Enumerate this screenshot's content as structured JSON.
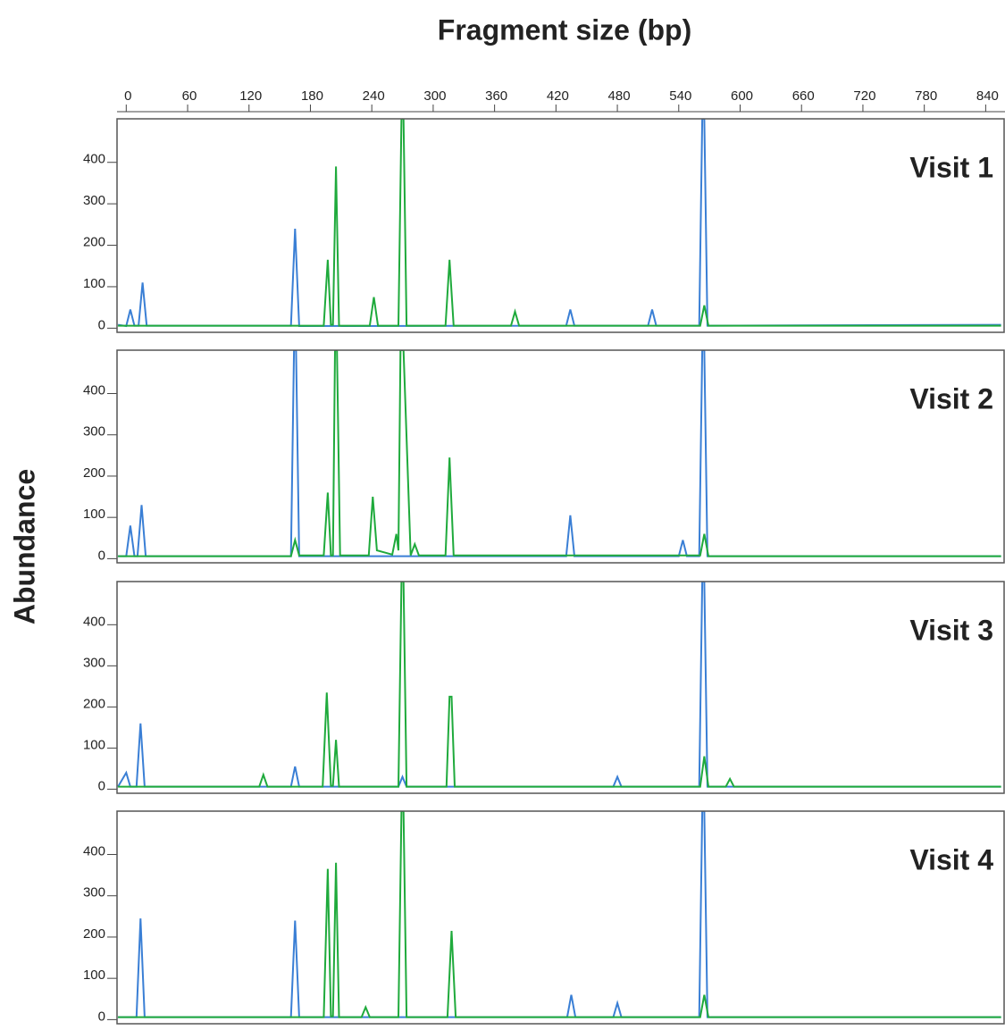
{
  "chart_data": [
    {
      "type": "line",
      "title": "Visit 1",
      "xlabel": "Fragment size (bp)",
      "ylabel": "Abundance",
      "xlim": [
        -9,
        858
      ],
      "xticks": [
        0,
        60,
        120,
        180,
        240,
        300,
        360,
        420,
        480,
        540,
        600,
        660,
        720,
        780,
        840
      ],
      "ylim": [
        -10,
        505
      ],
      "yticks": [
        0,
        100,
        200,
        300,
        400
      ],
      "series": [
        {
          "color": "#3a7fd5",
          "x": [
            -8,
            0,
            4,
            8,
            12,
            16,
            20,
            161,
            165,
            169,
            430,
            434,
            438,
            510,
            514,
            518,
            560,
            563,
            565,
            568,
            855
          ],
          "values": [
            8,
            5,
            45,
            6,
            6,
            110,
            6,
            6,
            240,
            5,
            6,
            45,
            6,
            6,
            45,
            6,
            6,
            505,
            505,
            6,
            8
          ]
        },
        {
          "color": "#1faa3c",
          "x": [
            -8,
            193,
            197,
            200,
            202,
            205,
            208,
            238,
            242,
            246,
            266,
            269,
            271,
            274,
            312,
            316,
            320,
            376,
            380,
            384,
            561,
            565,
            569,
            855
          ],
          "values": [
            6,
            6,
            165,
            8,
            8,
            390,
            6,
            6,
            75,
            6,
            6,
            505,
            505,
            6,
            6,
            165,
            6,
            6,
            40,
            6,
            6,
            55,
            6,
            6
          ]
        }
      ]
    },
    {
      "type": "line",
      "title": "Visit 2",
      "xlim": [
        -9,
        858
      ],
      "ylim": [
        -10,
        505
      ],
      "yticks": [
        0,
        100,
        200,
        300,
        400
      ],
      "series": [
        {
          "color": "#3a7fd5",
          "x": [
            -8,
            0,
            4,
            8,
            11,
            15,
            19,
            161,
            164,
            166,
            169,
            430,
            434,
            438,
            540,
            544,
            548,
            560,
            563,
            565,
            568,
            855
          ],
          "values": [
            6,
            6,
            80,
            6,
            6,
            130,
            6,
            6,
            505,
            505,
            6,
            6,
            105,
            6,
            6,
            45,
            6,
            6,
            505,
            505,
            6,
            6
          ]
        },
        {
          "color": "#1faa3c",
          "x": [
            -8,
            161,
            165,
            169,
            193,
            197,
            200,
            202,
            204,
            206,
            209,
            237,
            241,
            245,
            260,
            264,
            266,
            268,
            271,
            278,
            282,
            286,
            312,
            316,
            320,
            561,
            565,
            569,
            855
          ],
          "values": [
            6,
            6,
            45,
            8,
            8,
            160,
            8,
            8,
            505,
            505,
            8,
            8,
            150,
            20,
            10,
            60,
            20,
            505,
            505,
            8,
            35,
            8,
            8,
            245,
            8,
            8,
            60,
            6,
            6
          ]
        }
      ]
    },
    {
      "type": "line",
      "title": "Visit 3",
      "xlim": [
        -9,
        858
      ],
      "ylim": [
        -10,
        505
      ],
      "yticks": [
        0,
        100,
        200,
        300,
        400
      ],
      "series": [
        {
          "color": "#3a7fd5",
          "x": [
            -8,
            0,
            4,
            10,
            14,
            18,
            161,
            165,
            169,
            266,
            270,
            274,
            476,
            480,
            484,
            560,
            563,
            565,
            568,
            855
          ],
          "values": [
            6,
            40,
            6,
            6,
            160,
            6,
            6,
            55,
            6,
            6,
            30,
            6,
            6,
            30,
            6,
            6,
            505,
            505,
            6,
            6
          ]
        },
        {
          "color": "#1faa3c",
          "x": [
            -8,
            130,
            134,
            138,
            192,
            196,
            200,
            202,
            205,
            208,
            266,
            269,
            271,
            274,
            313,
            316,
            318,
            321,
            561,
            565,
            569,
            586,
            590,
            594,
            855
          ],
          "values": [
            6,
            6,
            35,
            6,
            6,
            235,
            8,
            8,
            120,
            6,
            6,
            505,
            505,
            6,
            6,
            225,
            225,
            6,
            6,
            80,
            6,
            6,
            25,
            6,
            6
          ]
        }
      ]
    },
    {
      "type": "line",
      "title": "Visit 4",
      "xlim": [
        -9,
        858
      ],
      "ylim": [
        -10,
        505
      ],
      "yticks": [
        0,
        100,
        200,
        300,
        400
      ],
      "series": [
        {
          "color": "#3a7fd5",
          "x": [
            -8,
            10,
            14,
            18,
            161,
            165,
            169,
            431,
            435,
            439,
            476,
            480,
            484,
            560,
            563,
            565,
            568,
            855
          ],
          "values": [
            6,
            6,
            245,
            6,
            6,
            240,
            6,
            6,
            60,
            6,
            6,
            40,
            6,
            6,
            505,
            505,
            6,
            6
          ]
        },
        {
          "color": "#1faa3c",
          "x": [
            -8,
            193,
            197,
            200,
            202,
            205,
            208,
            230,
            234,
            238,
            266,
            269,
            271,
            274,
            314,
            318,
            322,
            561,
            565,
            569,
            855
          ],
          "values": [
            6,
            6,
            365,
            8,
            8,
            380,
            6,
            6,
            30,
            6,
            6,
            505,
            505,
            6,
            6,
            215,
            6,
            6,
            60,
            6,
            6
          ]
        }
      ]
    }
  ]
}
